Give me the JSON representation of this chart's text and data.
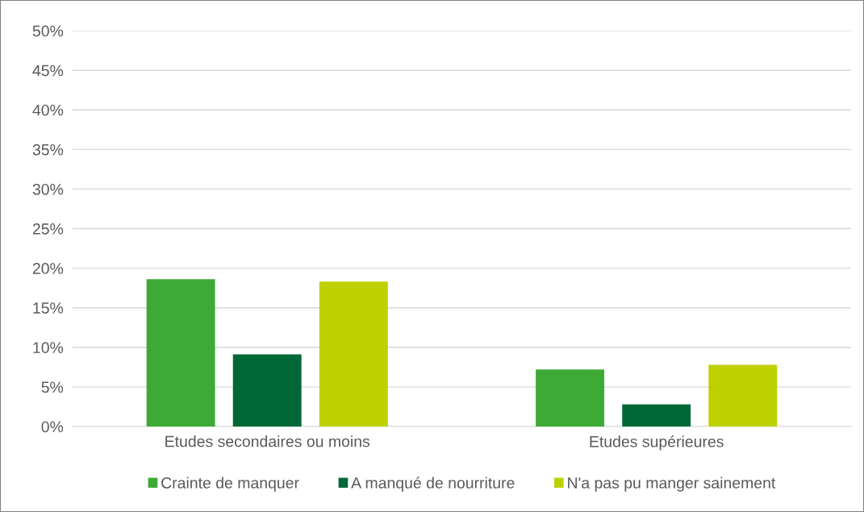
{
  "chart_data": {
    "type": "bar",
    "categories": [
      "Etudes secondaires ou moins",
      "Etudes supérieures"
    ],
    "series": [
      {
        "name": "Crainte de manquer",
        "color": "#3daa35",
        "values": [
          18.6,
          7.2
        ]
      },
      {
        "name": "A manqué de nourriture",
        "color": "#006837",
        "values": [
          9.1,
          2.8
        ]
      },
      {
        "name": "N'a pas pu manger sainement",
        "color": "#bdd000",
        "values": [
          18.3,
          7.8
        ]
      }
    ],
    "ylim": [
      0,
      50
    ],
    "yticks": [
      {
        "value": 0,
        "label": "0%"
      },
      {
        "value": 5,
        "label": "5%"
      },
      {
        "value": 10,
        "label": "10%"
      },
      {
        "value": 15,
        "label": "15%"
      },
      {
        "value": 20,
        "label": "20%"
      },
      {
        "value": 25,
        "label": "25%"
      },
      {
        "value": 30,
        "label": "30%"
      },
      {
        "value": 35,
        "label": "35%"
      },
      {
        "value": 40,
        "label": "40%"
      },
      {
        "value": 45,
        "label": "45%"
      },
      {
        "value": 50,
        "label": "50%"
      }
    ],
    "grid": "y",
    "legend": "bottom"
  }
}
